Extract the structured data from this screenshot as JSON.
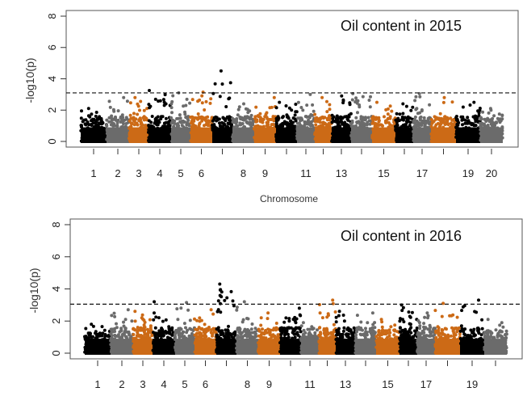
{
  "chart_data": [
    {
      "type": "scatter",
      "subtype": "manhattan",
      "title": "Oil content in 2015",
      "ylabel": "-log10(p)",
      "xlabel": "Chromosome",
      "ylim": [
        0,
        8
      ],
      "yticks": [
        "0",
        "2",
        "4",
        "6",
        "8"
      ],
      "threshold": 3.1,
      "grid": false,
      "colors": [
        "#000000",
        "#6b6b6b",
        "#cc6a16"
      ],
      "chromosomes": [
        "1",
        "2",
        "3",
        "4",
        "5",
        "6",
        "7",
        "8",
        "9",
        "10",
        "11",
        "12",
        "13",
        "14",
        "15",
        "16",
        "17",
        "18",
        "19",
        "20"
      ],
      "xtick_labels_shown": [
        "1",
        "2",
        "3",
        "4",
        "5",
        "6",
        "",
        "8",
        "9",
        "",
        "11",
        "",
        "13",
        "",
        "15",
        "",
        "17",
        "",
        "19",
        "20"
      ],
      "max_per_chromosome": [
        2.1,
        2.8,
        2.8,
        3.25,
        3.1,
        3.15,
        4.5,
        2.4,
        2.8,
        2.5,
        3.0,
        2.8,
        2.9,
        3.05,
        2.5,
        2.4,
        3.05,
        2.8,
        2.5,
        2.1
      ]
    },
    {
      "type": "scatter",
      "subtype": "manhattan",
      "title": "Oil content in 2016",
      "ylabel": "-log10(p)",
      "xlabel": "",
      "ylim": [
        0,
        8
      ],
      "yticks": [
        "0",
        "2",
        "4",
        "6",
        "8"
      ],
      "threshold": 3.05,
      "grid": false,
      "colors": [
        "#000000",
        "#6b6b6b",
        "#cc6a16"
      ],
      "chromosomes": [
        "1",
        "2",
        "3",
        "4",
        "5",
        "6",
        "7",
        "8",
        "9",
        "10",
        "11",
        "12",
        "13",
        "14",
        "15",
        "16",
        "17",
        "18",
        "19",
        "20"
      ],
      "xtick_labels_shown": [
        "1",
        "2",
        "3",
        "4",
        "5",
        "6",
        "",
        "8",
        "9",
        "",
        "11",
        "",
        "13",
        "",
        "15",
        "",
        "17",
        "",
        "19",
        ""
      ],
      "max_per_chromosome": [
        1.8,
        2.7,
        2.6,
        3.2,
        3.15,
        2.7,
        4.3,
        3.2,
        2.5,
        2.8,
        1.9,
        3.3,
        2.6,
        2.5,
        2.1,
        3.0,
        2.5,
        3.1,
        3.3,
        2.1
      ]
    }
  ]
}
